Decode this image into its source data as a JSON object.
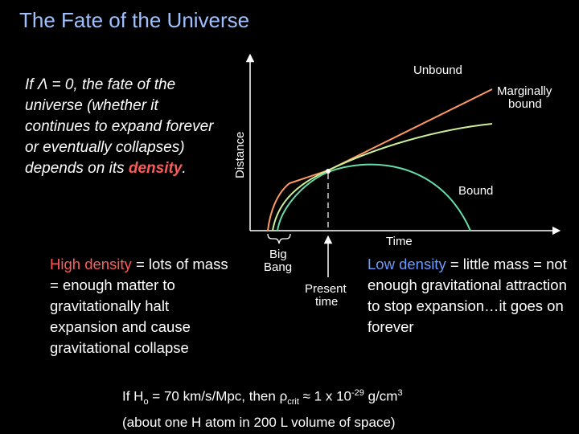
{
  "title": "The Fate of the Universe",
  "intro": {
    "part1": "If Λ = 0, the fate of the universe (whether it continues to expand forever or eventually collapses) depends on its ",
    "highlight": "density",
    "end": "."
  },
  "high_density": {
    "highlight": "High density",
    "text": " = lots of mass = enough matter to gravitationally halt expansion and cause gravitational collapse"
  },
  "low_density": {
    "highlight": "Low density",
    "text": " = little mass = not enough gravitational attraction to stop expansion…it goes on forever"
  },
  "formula": {
    "line1_a": "If H",
    "line1_sub": "o",
    "line1_b": " = 70 km/s/Mpc, then ρ",
    "line1_sub2": "crit",
    "line1_c": " ≈ 1 x 10",
    "line1_sup": "-29",
    "line1_d": " g/cm",
    "line1_sup2": "3",
    "line2": "(about one H atom in 200 L volume of space)"
  },
  "diagram": {
    "y_axis_label": "Distance",
    "x_axis_label": "Time",
    "curves": {
      "unbound": {
        "label": "Unbound",
        "color": "#ff9966"
      },
      "marginal": {
        "label_line1": "Marginally",
        "label_line2": "bound",
        "color": "#ccee99"
      },
      "bound": {
        "label": "Bound",
        "color": "#66ddaa"
      }
    },
    "big_bang_line1": "Big",
    "big_bang_line2": "Bang",
    "present_line1": "Present",
    "present_line2": "time"
  }
}
